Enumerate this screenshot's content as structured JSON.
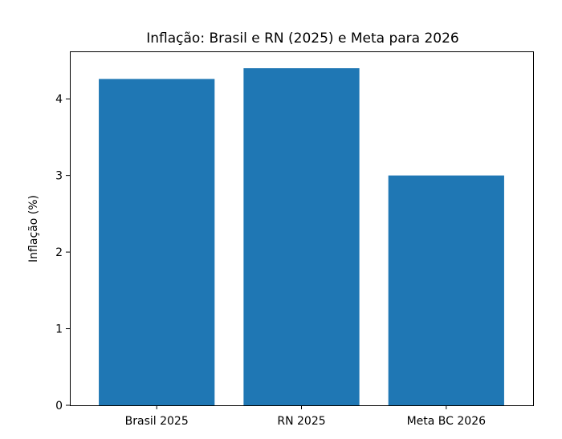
{
  "chart_data": {
    "type": "bar",
    "title": "Inflação: Brasil e RN (2025) e Meta para 2026",
    "xlabel": "",
    "ylabel": "Inflação (%)",
    "categories": [
      "Brasil 2025",
      "RN 2025",
      "Meta BC 2026"
    ],
    "values": [
      4.26,
      4.4,
      3.0
    ],
    "ylim": [
      0,
      4.62
    ],
    "yticks": [
      0,
      1,
      2,
      3,
      4
    ],
    "bar_color": "#1f77b4",
    "grid": false,
    "legend": "none"
  }
}
